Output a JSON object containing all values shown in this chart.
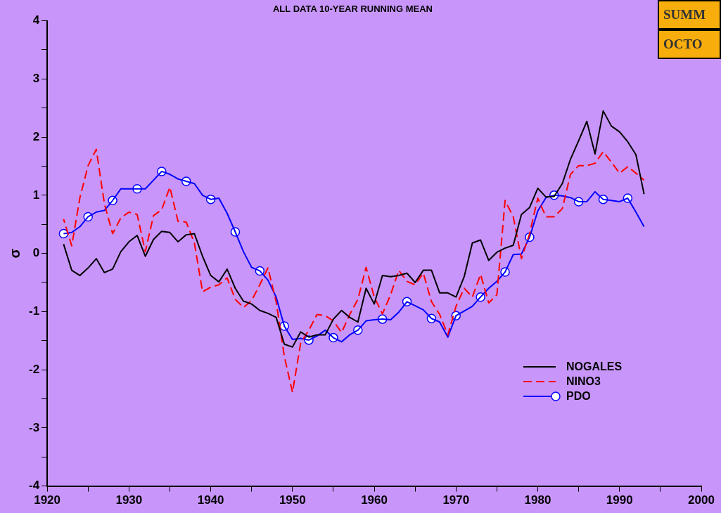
{
  "chart_data": {
    "type": "line",
    "title": "ALL DATA 10-YEAR RUNNING MEAN",
    "ylabel": "σ",
    "x": [
      1922,
      1923,
      1924,
      1925,
      1926,
      1927,
      1928,
      1929,
      1930,
      1931,
      1932,
      1933,
      1934,
      1935,
      1936,
      1937,
      1938,
      1939,
      1940,
      1941,
      1942,
      1943,
      1944,
      1945,
      1946,
      1947,
      1948,
      1949,
      1950,
      1951,
      1952,
      1953,
      1954,
      1955,
      1956,
      1957,
      1958,
      1959,
      1960,
      1961,
      1962,
      1963,
      1964,
      1965,
      1966,
      1967,
      1968,
      1969,
      1970,
      1971,
      1972,
      1973,
      1974,
      1975,
      1976,
      1977,
      1978,
      1979,
      1980,
      1981,
      1982,
      1983,
      1984,
      1985,
      1986,
      1987,
      1988,
      1989,
      1990,
      1991,
      1992,
      1993
    ],
    "series": [
      {
        "name": "NOGALES",
        "color": "#000000",
        "line_style": "solid",
        "marker": "none",
        "values": [
          0.16,
          -0.29,
          -0.38,
          -0.25,
          -0.09,
          -0.33,
          -0.27,
          0.03,
          0.2,
          0.31,
          -0.05,
          0.24,
          0.38,
          0.36,
          0.2,
          0.32,
          0.34,
          -0.05,
          -0.38,
          -0.49,
          -0.27,
          -0.6,
          -0.82,
          -0.87,
          -0.98,
          -1.03,
          -1.1,
          -1.56,
          -1.61,
          -1.35,
          -1.44,
          -1.4,
          -1.4,
          -1.13,
          -0.98,
          -1.1,
          -1.18,
          -0.6,
          -0.87,
          -0.38,
          -0.4,
          -0.38,
          -0.34,
          -0.5,
          -0.29,
          -0.29,
          -0.68,
          -0.68,
          -0.75,
          -0.4,
          0.18,
          0.23,
          -0.12,
          0.02,
          0.09,
          0.14,
          0.67,
          0.79,
          1.12,
          0.97,
          0.98,
          1.2,
          1.62,
          1.94,
          2.27,
          1.71,
          2.45,
          2.19,
          2.09,
          1.92,
          1.7,
          1.02
        ]
      },
      {
        "name": "NINO3",
        "color": "#ff0000",
        "line_style": "dashed",
        "marker": "none",
        "values": [
          0.59,
          0.13,
          0.96,
          1.51,
          1.79,
          0.85,
          0.34,
          0.61,
          0.71,
          0.67,
          0.03,
          0.65,
          0.75,
          1.14,
          0.55,
          0.54,
          0.18,
          -0.66,
          -0.58,
          -0.54,
          -0.42,
          -0.79,
          -0.93,
          -0.81,
          -0.54,
          -0.25,
          -0.83,
          -1.77,
          -2.39,
          -1.54,
          -1.32,
          -1.05,
          -1.07,
          -1.16,
          -1.36,
          -1.05,
          -0.79,
          -0.24,
          -0.75,
          -1.04,
          -0.71,
          -0.29,
          -0.48,
          -0.54,
          -0.34,
          -0.83,
          -1.05,
          -1.4,
          -0.91,
          -0.6,
          -0.75,
          -0.36,
          -0.85,
          -0.71,
          0.91,
          0.63,
          -0.09,
          0.34,
          0.95,
          0.63,
          0.63,
          0.77,
          1.36,
          1.51,
          1.51,
          1.55,
          1.75,
          1.57,
          1.38,
          1.49,
          1.38,
          1.26
        ]
      },
      {
        "name": "PDO",
        "color": "#0000ff",
        "line_style": "solid",
        "marker": "none",
        "values": [
          0.34,
          0.36,
          0.46,
          0.63,
          0.71,
          0.74,
          0.91,
          1.11,
          1.11,
          1.11,
          1.11,
          1.26,
          1.41,
          1.36,
          1.28,
          1.24,
          1.2,
          1.0,
          0.93,
          0.95,
          0.69,
          0.37,
          0.03,
          -0.24,
          -0.3,
          -0.46,
          -0.75,
          -1.25,
          -1.48,
          -1.46,
          -1.49,
          -1.42,
          -1.32,
          -1.45,
          -1.52,
          -1.4,
          -1.32,
          -1.16,
          -1.14,
          -1.13,
          -1.14,
          -1.01,
          -0.83,
          -0.9,
          -0.97,
          -1.12,
          -1.18,
          -1.44,
          -1.07,
          -0.99,
          -0.91,
          -0.75,
          -0.6,
          -0.48,
          -0.32,
          -0.02,
          -0.01,
          0.28,
          0.73,
          0.96,
          1.0,
          0.99,
          0.96,
          0.89,
          0.89,
          1.06,
          0.93,
          0.91,
          0.89,
          0.95,
          0.71,
          0.46
        ]
      },
      {
        "type": "scatter",
        "color": "#0000ff",
        "marker": "circle",
        "x": [
          1922,
          1925,
          1928,
          1931,
          1934,
          1937,
          1940,
          1943,
          1946,
          1949,
          1952,
          1955,
          1958,
          1961,
          1964,
          1967,
          1970,
          1973,
          1976,
          1979,
          1982,
          1985,
          1988,
          1991
        ],
        "values": [
          0.34,
          0.63,
          0.91,
          1.11,
          1.41,
          1.24,
          0.93,
          0.37,
          -0.3,
          -1.25,
          -1.49,
          -1.45,
          -1.32,
          -1.13,
          -0.83,
          -1.12,
          -1.07,
          -0.75,
          -0.32,
          0.28,
          1.0,
          0.89,
          0.93,
          0.95
        ]
      }
    ],
    "xlim": [
      1920,
      2000
    ],
    "xticks": [
      1920,
      {
        "value": 1925,
        "label": null
      },
      1930,
      {
        "value": 1935,
        "label": null
      },
      1940,
      {
        "value": 1945,
        "label": null
      },
      1950,
      {
        "value": 1955,
        "label": null
      },
      1960,
      {
        "value": 1965,
        "label": null
      },
      1970,
      {
        "value": 1975,
        "label": null
      },
      1980,
      {
        "value": 1985,
        "label": null
      },
      1990,
      {
        "value": 1995,
        "label": null
      },
      2000
    ],
    "ylim": [
      -4,
      4
    ],
    "yticks": [
      -4,
      {
        "value": -3.5,
        "label": null
      },
      -3,
      {
        "value": -2.5,
        "label": null
      },
      -2,
      {
        "value": -1.5,
        "label": null
      },
      -1,
      {
        "value": -0.5,
        "label": null
      },
      0,
      {
        "value": 0.5,
        "label": null
      },
      1,
      {
        "value": 1.5,
        "label": null
      },
      2,
      {
        "value": 2.5,
        "label": null
      },
      3,
      {
        "value": 3.5,
        "label": null
      },
      4
    ],
    "grid": false,
    "legend": "bottom right",
    "annotations": [
      "SUMM",
      "OCTO"
    ]
  }
}
